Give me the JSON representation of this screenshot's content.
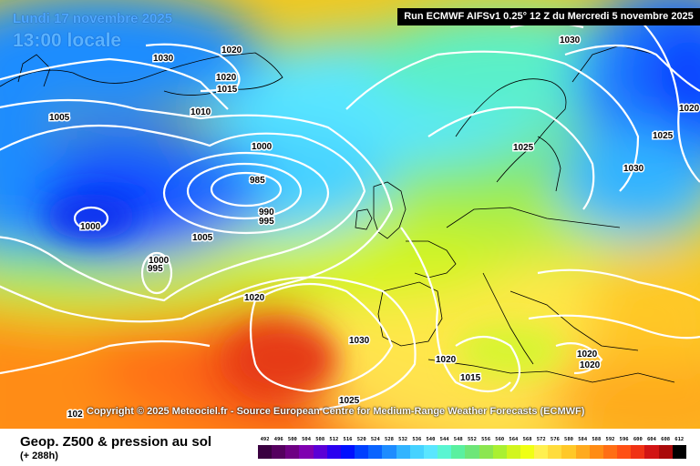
{
  "header": {
    "date": "Lundi 17 novembre 2025",
    "time_label": "13:00 locale",
    "run_info": "Run ECMWF AIFSv1 0.25° 12 Z du Mercredi 5 novembre 2025"
  },
  "copyright": "Copyright © 2025 Meteociel.fr - Source European Centre for Medium-Range Weather Forecasts (ECMWF)",
  "footer": {
    "title": "Geop. Z500 & pression au sol",
    "forecast_hour": "(+ 288h)"
  },
  "pressure_labels": [
    "1020",
    "1020",
    "1015",
    "1010",
    "1005",
    "1000",
    "985",
    "990",
    "995",
    "1000",
    "1005",
    "1000",
    "995",
    "1020",
    "1030",
    "1020",
    "1015",
    "1025",
    "1030",
    "1025",
    "1020",
    "1030",
    "1025",
    "1030",
    "1020",
    "1020",
    "102"
  ],
  "legend": {
    "ticks": [
      "492",
      "496",
      "500",
      "504",
      "508",
      "512",
      "516",
      "520",
      "524",
      "528",
      "532",
      "536",
      "540",
      "544",
      "548",
      "552",
      "556",
      "560",
      "564",
      "568",
      "572",
      "576",
      "580",
      "584",
      "588",
      "592",
      "596",
      "600",
      "604",
      "608",
      "612"
    ],
    "colors": [
      "#3a0040",
      "#55005f",
      "#6e0083",
      "#7f00b0",
      "#5b00d6",
      "#2a00f0",
      "#0010ff",
      "#0040ff",
      "#0a64ff",
      "#1e8cff",
      "#32b4ff",
      "#46d2ff",
      "#5ae6ff",
      "#5af5d2",
      "#5af0a0",
      "#6ee678",
      "#8ce650",
      "#aaf032",
      "#d2f51e",
      "#f0ff14",
      "#fff050",
      "#ffdc3c",
      "#ffc828",
      "#ffaa1e",
      "#ff8c14",
      "#ff6e14",
      "#ff5014",
      "#f03214",
      "#d21414",
      "#aa0a0a",
      "#000000"
    ]
  }
}
